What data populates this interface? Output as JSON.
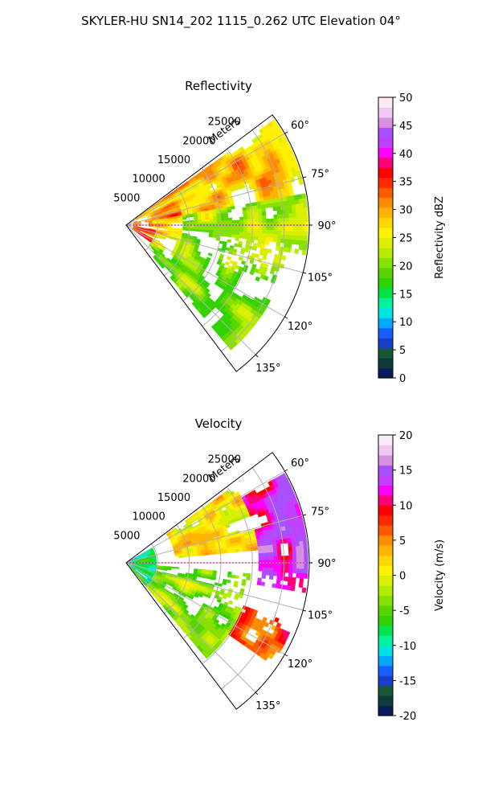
{
  "figure": {
    "suptitle": "SKYLER-HU  SN14_202  1115_0.262 UTC Elevation 04°"
  },
  "chart_data": [
    {
      "type": "heatmap",
      "projection": "polar-sector",
      "title": "Reflectivity",
      "radial_label": "Meters",
      "radial_ticks": [
        "5000",
        "10000",
        "15000",
        "20000",
        "25000"
      ],
      "radial_range": [
        0,
        29000
      ],
      "azimuth_range_deg": [
        53,
        143
      ],
      "azimuth_ticks": [
        "60°",
        "75°",
        "90°",
        "105°",
        "120°",
        "135°"
      ],
      "grid": true,
      "colorbar": {
        "label": "Reflectivity dBZ",
        "range": [
          0,
          50
        ],
        "ticks": [
          "0",
          "5",
          "10",
          "15",
          "20",
          "25",
          "30",
          "35",
          "40",
          "45",
          "50"
        ]
      },
      "field_summary": [
        {
          "azimuth_deg": [
            55,
            80
          ],
          "range_m": [
            2000,
            29000
          ],
          "value_dbz": 28
        },
        {
          "azimuth_deg": [
            80,
            100
          ],
          "range_m": [
            4000,
            29000
          ],
          "value_dbz": 22
        },
        {
          "azimuth_deg": [
            70,
            125
          ],
          "range_m": [
            1000,
            9000
          ],
          "value_dbz": 34
        },
        {
          "azimuth_deg": [
            100,
            140
          ],
          "range_m": [
            5000,
            26000
          ],
          "value_dbz": 20
        }
      ]
    },
    {
      "type": "heatmap",
      "projection": "polar-sector",
      "title": "Velocity",
      "radial_label": "Meters",
      "radial_ticks": [
        "5000",
        "10000",
        "15000",
        "20000",
        "25000"
      ],
      "radial_range": [
        0,
        29000
      ],
      "azimuth_range_deg": [
        53,
        143
      ],
      "azimuth_ticks": [
        "60°",
        "75°",
        "90°",
        "105°",
        "120°",
        "135°"
      ],
      "grid": true,
      "colorbar": {
        "label": "Velocity (m/s)",
        "range": [
          -20,
          20
        ],
        "ticks": [
          "-20",
          "-15",
          "-10",
          "-5",
          "0",
          "5",
          "10",
          "15",
          "20"
        ]
      },
      "field_summary": [
        {
          "azimuth_deg": [
            60,
            100
          ],
          "range_m": [
            21000,
            29000
          ],
          "value_ms": 12
        },
        {
          "azimuth_deg": [
            55,
            85
          ],
          "range_m": [
            8000,
            21000
          ],
          "value_ms": 1
        },
        {
          "azimuth_deg": [
            60,
            140
          ],
          "range_m": [
            0,
            5000
          ],
          "value_ms": -9
        },
        {
          "azimuth_deg": [
            95,
            140
          ],
          "range_m": [
            5000,
            20000
          ],
          "value_ms": -4
        },
        {
          "azimuth_deg": [
            110,
            125
          ],
          "range_m": [
            20000,
            28000
          ],
          "value_ms": 7
        }
      ]
    }
  ],
  "colormaps": {
    "reflectivity": [
      "#0b1a5c",
      "#0e3b3a",
      "#145a3a",
      "#1a40c8",
      "#1560ff",
      "#00a9ff",
      "#00e2e0",
      "#00f29a",
      "#00e24a",
      "#2fd400",
      "#5ad400",
      "#86e000",
      "#b4ec00",
      "#dcee00",
      "#fff000",
      "#ffd600",
      "#ffb400",
      "#ff8c00",
      "#ff5a00",
      "#ff2a00",
      "#ff0000",
      "#ff0078",
      "#ff00ff",
      "#c040ff",
      "#a850ff",
      "#d890e0",
      "#f0c8f0",
      "#fbe8fb"
    ],
    "velocity": [
      "#0b1a5c",
      "#0e3b3a",
      "#145a3a",
      "#1a40c8",
      "#1560ff",
      "#00a9ff",
      "#00e2e0",
      "#00f29a",
      "#00e24a",
      "#2fd400",
      "#5ad400",
      "#86e000",
      "#b4ec00",
      "#dcee00",
      "#fff000",
      "#ffd600",
      "#ffb400",
      "#ff8c00",
      "#ff5a00",
      "#ff2a00",
      "#ff0000",
      "#ff0078",
      "#ff00ff",
      "#c040ff",
      "#a850ff",
      "#d890e0",
      "#f0c8f0",
      "#fbe8fb"
    ]
  }
}
